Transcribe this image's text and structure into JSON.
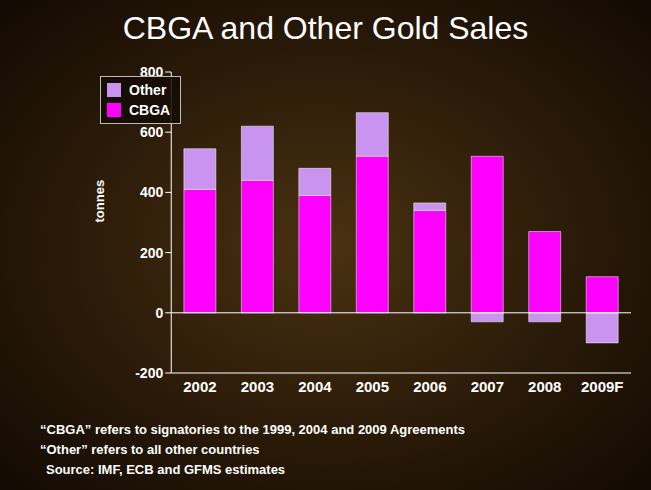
{
  "chart_data": {
    "type": "bar",
    "title": "CBGA and Other Gold Sales",
    "categories": [
      "2002",
      "2003",
      "2004",
      "2005",
      "2006",
      "2007",
      "2008",
      "2009F"
    ],
    "series": [
      {
        "name": "CBGA",
        "color": "#ff00ff",
        "values": [
          410,
          440,
          390,
          520,
          340,
          520,
          270,
          120
        ]
      },
      {
        "name": "Other",
        "color": "#c994f0",
        "values": [
          135,
          180,
          90,
          145,
          25,
          -30,
          -30,
          -100
        ]
      }
    ],
    "stacked": true,
    "y_label": "tonnes",
    "ylim": [
      -200,
      800
    ],
    "yticks": [
      -200,
      0,
      200,
      400,
      600,
      800
    ],
    "legend": "upper left",
    "grid": false,
    "annotations": [
      "“CBGA” refers to signatories to the 1999, 2004 and 2009 Agreements",
      "“Other” refers to all other countries",
      "Source: IMF, ECB and GFMS estimates"
    ]
  }
}
